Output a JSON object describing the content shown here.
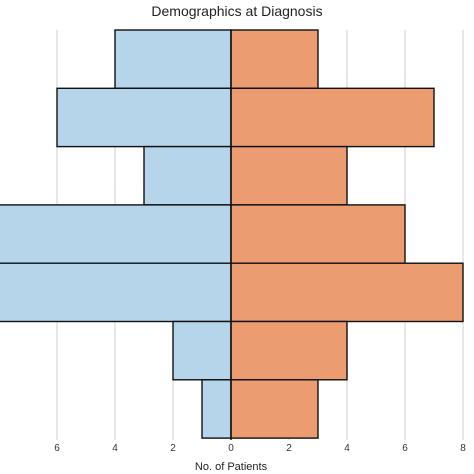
{
  "chart_data": {
    "type": "bar",
    "title": "Demographics at Diagnosis",
    "xlabel": "No. of Patients",
    "ylabel": "",
    "orientation": "horizontal",
    "style": "population-pyramid",
    "xlim": [
      -8,
      8
    ],
    "x_tick_labels": [
      "6",
      "4",
      "2",
      "0",
      "2",
      "4",
      "6",
      "8"
    ],
    "x_tick_values": [
      -6,
      -4,
      -2,
      0,
      2,
      4,
      6,
      8
    ],
    "grid": true,
    "legend": "none",
    "categories": [
      "",
      "",
      "",
      "",
      "",
      "",
      ""
    ],
    "series": [
      {
        "side": "left",
        "color": "#b6d4ea",
        "values": [
          4,
          6,
          3,
          8,
          8,
          2,
          1
        ]
      },
      {
        "side": "right",
        "color": "#eb9c70",
        "values": [
          3,
          7,
          4,
          6,
          8,
          4,
          3
        ]
      }
    ]
  }
}
